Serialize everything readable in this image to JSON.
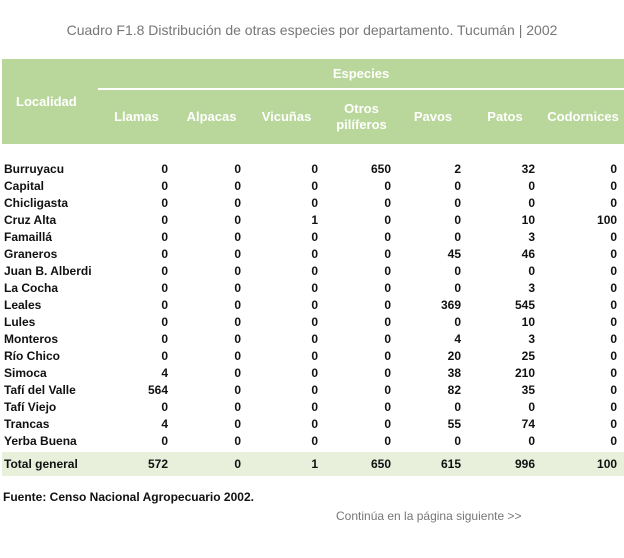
{
  "title": "Cuadro F1.8 Distribución de otras especies por departamento. Tucumán | 2002",
  "table": {
    "locality_header": "Localidad",
    "group_header": "Especies",
    "columns": [
      "Llamas",
      "Alpacas",
      "Vicuñas",
      "Otros\npilíferos",
      "Pavos",
      "Patos",
      "Codornices"
    ],
    "rows": [
      {
        "name": "Burruyacu",
        "values": [
          "0",
          "0",
          "0",
          "650",
          "2",
          "32",
          "0"
        ]
      },
      {
        "name": "Capital",
        "values": [
          "0",
          "0",
          "0",
          "0",
          "0",
          "0",
          "0"
        ]
      },
      {
        "name": "Chicligasta",
        "values": [
          "0",
          "0",
          "0",
          "0",
          "0",
          "0",
          "0"
        ]
      },
      {
        "name": "Cruz Alta",
        "values": [
          "0",
          "0",
          "1",
          "0",
          "0",
          "10",
          "100"
        ]
      },
      {
        "name": "Famaillá",
        "values": [
          "0",
          "0",
          "0",
          "0",
          "0",
          "3",
          "0"
        ]
      },
      {
        "name": "Graneros",
        "values": [
          "0",
          "0",
          "0",
          "0",
          "45",
          "46",
          "0"
        ]
      },
      {
        "name": "Juan B. Alberdi",
        "values": [
          "0",
          "0",
          "0",
          "0",
          "0",
          "0",
          "0"
        ]
      },
      {
        "name": "La Cocha",
        "values": [
          "0",
          "0",
          "0",
          "0",
          "0",
          "3",
          "0"
        ]
      },
      {
        "name": "Leales",
        "values": [
          "0",
          "0",
          "0",
          "0",
          "369",
          "545",
          "0"
        ]
      },
      {
        "name": "Lules",
        "values": [
          "0",
          "0",
          "0",
          "0",
          "0",
          "10",
          "0"
        ]
      },
      {
        "name": "Monteros",
        "values": [
          "0",
          "0",
          "0",
          "0",
          "4",
          "3",
          "0"
        ]
      },
      {
        "name": "Río Chico",
        "values": [
          "0",
          "0",
          "0",
          "0",
          "20",
          "25",
          "0"
        ]
      },
      {
        "name": "Simoca",
        "values": [
          "4",
          "0",
          "0",
          "0",
          "38",
          "210",
          "0"
        ]
      },
      {
        "name": "Tafí del Valle",
        "values": [
          "564",
          "0",
          "0",
          "0",
          "82",
          "35",
          "0"
        ]
      },
      {
        "name": "Tafí Viejo",
        "values": [
          "0",
          "0",
          "0",
          "0",
          "0",
          "0",
          "0"
        ]
      },
      {
        "name": "Trancas",
        "values": [
          "4",
          "0",
          "0",
          "0",
          "55",
          "74",
          "0"
        ]
      },
      {
        "name": "Yerba Buena",
        "values": [
          "0",
          "0",
          "0",
          "0",
          "0",
          "0",
          "0"
        ]
      }
    ],
    "total": {
      "name": "Total general",
      "values": [
        "572",
        "0",
        "1",
        "650",
        "615",
        "996",
        "100"
      ]
    }
  },
  "source": "Fuente: Censo Nacional Agropecuario 2002.",
  "continue_link": "Continúa en la página siguiente >>",
  "colors": {
    "header_bg": "#b9d79a",
    "total_bg": "#e8f0dc",
    "muted_text": "#777777"
  }
}
